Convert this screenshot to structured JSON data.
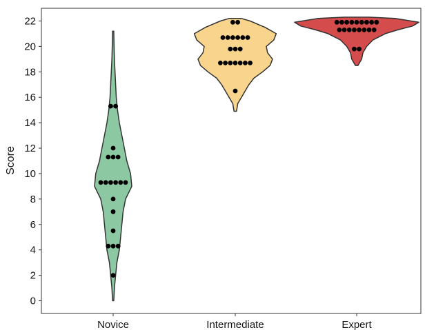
{
  "chart_data": {
    "type": "violin",
    "xlabel": "",
    "ylabel": "Score",
    "ylim": [
      -1,
      23
    ],
    "yticks": [
      0,
      2,
      4,
      6,
      8,
      10,
      12,
      14,
      16,
      18,
      20,
      22
    ],
    "grid": false,
    "legend": "none",
    "categories": [
      "Novice",
      "Intermediate",
      "Expert"
    ],
    "series": [
      {
        "category": "Novice",
        "color": "#8cc9a3",
        "range": [
          0,
          21.2
        ],
        "density": [
          [
            0,
            0.01
          ],
          [
            1,
            0.02
          ],
          [
            2,
            0.04
          ],
          [
            3,
            0.06
          ],
          [
            4,
            0.1
          ],
          [
            5,
            0.12
          ],
          [
            6,
            0.14
          ],
          [
            7,
            0.16
          ],
          [
            8,
            0.2
          ],
          [
            9,
            0.3
          ],
          [
            10,
            0.28
          ],
          [
            11,
            0.22
          ],
          [
            12,
            0.18
          ],
          [
            13,
            0.14
          ],
          [
            14,
            0.1
          ],
          [
            15,
            0.07
          ],
          [
            16,
            0.05
          ],
          [
            17,
            0.04
          ],
          [
            18,
            0.03
          ],
          [
            19,
            0.02
          ],
          [
            20,
            0.015
          ],
          [
            21.2,
            0.01
          ]
        ],
        "points": [
          2,
          4.3,
          4.3,
          4.3,
          5.5,
          7,
          8,
          9.3,
          9.3,
          9.3,
          9.3,
          9.3,
          9.3,
          11.3,
          11.3,
          11.3,
          12,
          15.3,
          15.3
        ]
      },
      {
        "category": "Intermediate",
        "color": "#f8d48d",
        "range": [
          14.9,
          22.2
        ],
        "density": [
          [
            14.9,
            0.02
          ],
          [
            15.5,
            0.04
          ],
          [
            16,
            0.1
          ],
          [
            16.5,
            0.16
          ],
          [
            17,
            0.22
          ],
          [
            17.5,
            0.3
          ],
          [
            18,
            0.44
          ],
          [
            18.5,
            0.56
          ],
          [
            19,
            0.6
          ],
          [
            19.5,
            0.52
          ],
          [
            20,
            0.5
          ],
          [
            20.5,
            0.62
          ],
          [
            21,
            0.66
          ],
          [
            21.5,
            0.48
          ],
          [
            22,
            0.24
          ],
          [
            22.2,
            0.1
          ]
        ],
        "points": [
          16.5,
          18.7,
          18.7,
          18.7,
          18.7,
          18.7,
          18.7,
          18.7,
          19.8,
          19.8,
          19.8,
          20.7,
          20.7,
          20.7,
          20.7,
          20.7,
          20.7,
          21.9,
          21.9
        ]
      },
      {
        "category": "Expert",
        "color": "#d54c4c",
        "range": [
          18.5,
          22.3
        ],
        "density": [
          [
            18.5,
            0.02
          ],
          [
            19,
            0.08
          ],
          [
            19.5,
            0.1
          ],
          [
            20,
            0.16
          ],
          [
            20.5,
            0.26
          ],
          [
            21,
            0.46
          ],
          [
            21.3,
            0.66
          ],
          [
            21.6,
            0.9
          ],
          [
            21.9,
            1.0
          ],
          [
            22.2,
            0.62
          ],
          [
            22.3,
            0.2
          ]
        ],
        "points": [
          19.8,
          19.8,
          21.3,
          21.3,
          21.3,
          21.3,
          21.3,
          21.3,
          21.3,
          21.3,
          21.9,
          21.9,
          21.9,
          21.9,
          21.9,
          21.9,
          21.9,
          21.9,
          21.9
        ]
      }
    ]
  }
}
